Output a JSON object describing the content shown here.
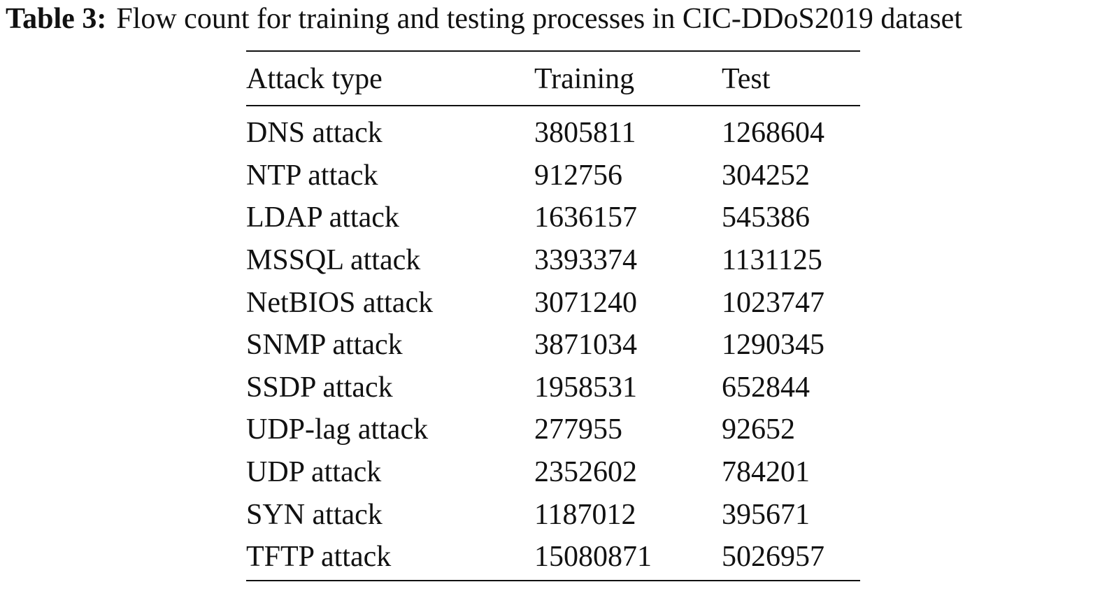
{
  "caption": {
    "label": "Table 3:",
    "text": "Flow count for training and testing processes in CIC-DDoS2019 dataset"
  },
  "table": {
    "headers": [
      "Attack type",
      "Training",
      "Test"
    ],
    "rows": [
      [
        "DNS attack",
        "3805811",
        "1268604"
      ],
      [
        "NTP attack",
        "912756",
        "304252"
      ],
      [
        "LDAP attack",
        "1636157",
        "545386"
      ],
      [
        "MSSQL attack",
        "3393374",
        "1131125"
      ],
      [
        "NetBIOS attack",
        "3071240",
        "1023747"
      ],
      [
        "SNMP attack",
        "3871034",
        "1290345"
      ],
      [
        "SSDP attack",
        "1958531",
        "652844"
      ],
      [
        "UDP-lag attack",
        "277955",
        "92652"
      ],
      [
        "UDP attack",
        "2352602",
        "784201"
      ],
      [
        "SYN attack",
        "1187012",
        "395671"
      ],
      [
        "TFTP attack",
        "15080871",
        "5026957"
      ]
    ]
  }
}
